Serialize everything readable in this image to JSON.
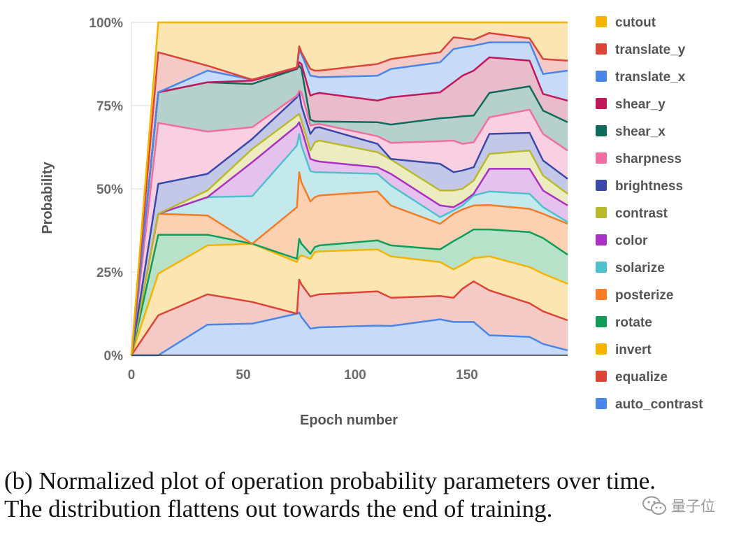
{
  "chart_data": {
    "type": "area",
    "stacked": true,
    "normalized": true,
    "xlabel": "Epoch number",
    "ylabel": "Probability",
    "xlim": [
      0,
      195
    ],
    "ylim": [
      0,
      1
    ],
    "x_ticks": [
      0,
      50,
      100,
      150
    ],
    "y_ticks": [
      0,
      0.25,
      0.5,
      0.75,
      1.0
    ],
    "x_tick_labels": [
      "0",
      "50",
      "100",
      "150"
    ],
    "y_tick_labels": [
      "0%",
      "25%",
      "50%",
      "75%",
      "100%"
    ],
    "grid": true,
    "legend_position": "right",
    "x": [
      0,
      12,
      34,
      54,
      74,
      75,
      76,
      80,
      82,
      84,
      110,
      116,
      138,
      144,
      148,
      153,
      160,
      178,
      184,
      195
    ],
    "cumulative_tops": [
      {
        "name": "auto_contrast",
        "values": [
          0.0,
          0.0,
          0.092,
          0.095,
          0.125,
          0.128,
          0.115,
          0.08,
          0.082,
          0.084,
          0.089,
          0.088,
          0.108,
          0.1,
          0.1,
          0.1,
          0.06,
          0.055,
          0.034,
          0.015
        ]
      },
      {
        "name": "equalize",
        "values": [
          0.0,
          0.12,
          0.183,
          0.16,
          0.125,
          0.227,
          0.213,
          0.176,
          0.18,
          0.183,
          0.192,
          0.173,
          0.178,
          0.173,
          0.2,
          0.222,
          0.195,
          0.156,
          0.132,
          0.105
        ]
      },
      {
        "name": "invert",
        "values": [
          0.0,
          0.245,
          0.33,
          0.335,
          0.28,
          0.295,
          0.3,
          0.29,
          0.31,
          0.312,
          0.318,
          0.297,
          0.28,
          0.258,
          0.272,
          0.292,
          0.297,
          0.265,
          0.245,
          0.215
        ]
      },
      {
        "name": "rotate",
        "values": [
          0.0,
          0.362,
          0.362,
          0.335,
          0.29,
          0.35,
          0.335,
          0.305,
          0.325,
          0.33,
          0.345,
          0.33,
          0.318,
          0.343,
          0.358,
          0.378,
          0.378,
          0.37,
          0.352,
          0.302
        ]
      },
      {
        "name": "posterize",
        "values": [
          0.0,
          0.425,
          0.42,
          0.335,
          0.445,
          0.55,
          0.52,
          0.462,
          0.475,
          0.48,
          0.492,
          0.45,
          0.395,
          0.425,
          0.438,
          0.45,
          0.451,
          0.44,
          0.425,
          0.395
        ]
      },
      {
        "name": "solarize",
        "values": [
          0.0,
          0.425,
          0.475,
          0.478,
          0.63,
          0.665,
          0.63,
          0.553,
          0.55,
          0.55,
          0.545,
          0.51,
          0.415,
          0.435,
          0.45,
          0.48,
          0.492,
          0.485,
          0.445,
          0.4
        ]
      },
      {
        "name": "color",
        "values": [
          0.0,
          0.425,
          0.475,
          0.58,
          0.69,
          0.7,
          0.68,
          0.59,
          0.585,
          0.582,
          0.565,
          0.545,
          0.45,
          0.445,
          0.46,
          0.485,
          0.56,
          0.56,
          0.495,
          0.45
        ]
      },
      {
        "name": "contrast",
        "values": [
          0.0,
          0.425,
          0.495,
          0.62,
          0.72,
          0.725,
          0.705,
          0.615,
          0.64,
          0.645,
          0.61,
          0.588,
          0.495,
          0.495,
          0.5,
          0.525,
          0.605,
          0.615,
          0.54,
          0.485
        ]
      },
      {
        "name": "brightness",
        "values": [
          0.0,
          0.515,
          0.545,
          0.65,
          0.775,
          0.79,
          0.75,
          0.665,
          0.683,
          0.685,
          0.635,
          0.59,
          0.575,
          0.55,
          0.555,
          0.565,
          0.665,
          0.668,
          0.585,
          0.53
        ]
      },
      {
        "name": "sharpness",
        "values": [
          0.0,
          0.698,
          0.672,
          0.685,
          0.78,
          0.795,
          0.79,
          0.69,
          0.693,
          0.695,
          0.658,
          0.638,
          0.643,
          0.645,
          0.635,
          0.64,
          0.715,
          0.738,
          0.665,
          0.615
        ]
      },
      {
        "name": "shear_x",
        "values": [
          0.0,
          0.79,
          0.82,
          0.815,
          0.86,
          0.87,
          0.86,
          0.708,
          0.702,
          0.702,
          0.7,
          0.693,
          0.712,
          0.715,
          0.718,
          0.72,
          0.788,
          0.808,
          0.735,
          0.7
        ]
      },
      {
        "name": "shear_y",
        "values": [
          0.0,
          0.79,
          0.82,
          0.825,
          0.862,
          0.88,
          0.875,
          0.78,
          0.785,
          0.788,
          0.765,
          0.775,
          0.79,
          0.82,
          0.84,
          0.855,
          0.895,
          0.885,
          0.785,
          0.765
        ]
      },
      {
        "name": "translate_x",
        "values": [
          0.0,
          0.79,
          0.855,
          0.828,
          0.865,
          0.915,
          0.905,
          0.84,
          0.838,
          0.835,
          0.84,
          0.86,
          0.88,
          0.92,
          0.925,
          0.93,
          0.94,
          0.94,
          0.845,
          0.855
        ]
      },
      {
        "name": "translate_y",
        "values": [
          0.0,
          0.91,
          0.87,
          0.828,
          0.865,
          0.928,
          0.91,
          0.86,
          0.855,
          0.855,
          0.875,
          0.89,
          0.91,
          0.955,
          0.952,
          0.948,
          0.968,
          0.952,
          0.89,
          0.885
        ]
      },
      {
        "name": "cutout",
        "values": [
          0.0,
          1.0,
          1.0,
          1.0,
          1.0,
          1.0,
          1.0,
          1.0,
          1.0,
          1.0,
          1.0,
          1.0,
          1.0,
          1.0,
          1.0,
          1.0,
          1.0,
          1.0,
          1.0,
          1.0
        ]
      }
    ],
    "series_styles": [
      {
        "name": "auto_contrast",
        "line": "#4a86e8",
        "fill": "#c7dbf8"
      },
      {
        "name": "equalize",
        "line": "#db4437",
        "fill": "#f3cac6"
      },
      {
        "name": "invert",
        "line": "#f4b400",
        "fill": "#fbe6b3"
      },
      {
        "name": "rotate",
        "line": "#0f9d58",
        "fill": "#b7e1c9"
      },
      {
        "name": "posterize",
        "line": "#f57c24",
        "fill": "#fbd1b1"
      },
      {
        "name": "solarize",
        "line": "#4fc0cc",
        "fill": "#c4e9ed"
      },
      {
        "name": "color",
        "line": "#ab30c4",
        "fill": "#e5c1ee"
      },
      {
        "name": "contrast",
        "line": "#b8ba2c",
        "fill": "#ececc0"
      },
      {
        "name": "brightness",
        "line": "#3949ab",
        "fill": "#c3c7e8"
      },
      {
        "name": "sharpness",
        "line": "#f06ea2",
        "fill": "#f9d0e2"
      },
      {
        "name": "shear_x",
        "line": "#116b5a",
        "fill": "#b6d1cb"
      },
      {
        "name": "shear_y",
        "line": "#c2185b",
        "fill": "#e9bccc"
      },
      {
        "name": "translate_x",
        "line": "#4a86e8",
        "fill": "#c7dbf8"
      },
      {
        "name": "translate_y",
        "line": "#db4437",
        "fill": "#f3cac6"
      },
      {
        "name": "cutout",
        "line": "#f4b400",
        "fill": "#fbe6b3"
      }
    ],
    "legend": [
      {
        "label": "cutout",
        "color": "#f4b400"
      },
      {
        "label": "translate_y",
        "color": "#db4437"
      },
      {
        "label": "translate_x",
        "color": "#4a86e8"
      },
      {
        "label": "shear_y",
        "color": "#c2185b"
      },
      {
        "label": "shear_x",
        "color": "#116b5a"
      },
      {
        "label": "sharpness",
        "color": "#f06ea2"
      },
      {
        "label": "brightness",
        "color": "#3949ab"
      },
      {
        "label": "contrast",
        "color": "#b8ba2c"
      },
      {
        "label": "color",
        "color": "#ab30c4"
      },
      {
        "label": "solarize",
        "color": "#4fc0cc"
      },
      {
        "label": "posterize",
        "color": "#f57c24"
      },
      {
        "label": "rotate",
        "color": "#0f9d58"
      },
      {
        "label": "invert",
        "color": "#f4b400"
      },
      {
        "label": "equalize",
        "color": "#db4437"
      },
      {
        "label": "auto_contrast",
        "color": "#4a86e8"
      }
    ]
  },
  "caption": {
    "line1": "(b) Normalized plot of operation probability parameters over time.",
    "line2": "The distribution flattens out towards the end of training."
  },
  "watermark": {
    "icon": "wechat-icon",
    "text": "量子位"
  }
}
